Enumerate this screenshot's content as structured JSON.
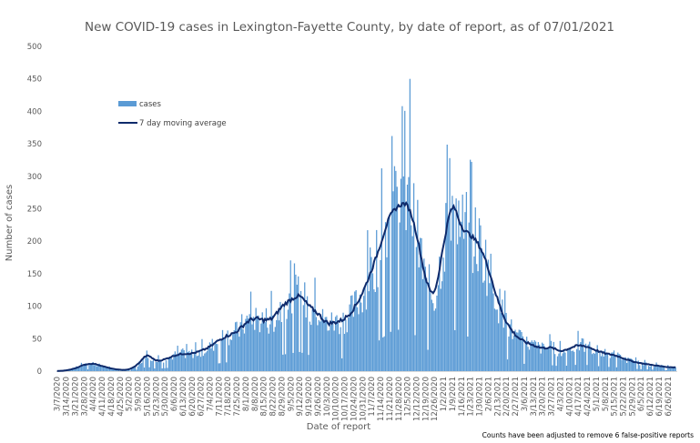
{
  "chart_data": {
    "type": "bar",
    "title": "New COVID-19 cases in Lexington-Fayette County, by date of report, as of 07/01/2021",
    "xlabel": "Date of report",
    "ylabel": "Number of cases",
    "ylim": [
      0,
      500
    ],
    "yticks": [
      0,
      50,
      100,
      150,
      200,
      250,
      300,
      350,
      400,
      450,
      500
    ],
    "grid": false,
    "legend_position": "top-left",
    "start_date": "3/7/2020",
    "end_date": "6/30/2021",
    "xtick_labels": [
      "3/7/2020",
      "3/14/2020",
      "3/21/2020",
      "3/28/2020",
      "4/4/2020",
      "4/11/2020",
      "4/18/2020",
      "4/25/2020",
      "5/2/2020",
      "5/9/2020",
      "5/16/2020",
      "5/23/2020",
      "5/30/2020",
      "6/6/2020",
      "6/13/2020",
      "6/20/2020",
      "6/27/2020",
      "7/4/2020",
      "7/11/2020",
      "7/18/2020",
      "7/25/2020",
      "8/1/2020",
      "8/8/2020",
      "8/15/2020",
      "8/22/2020",
      "8/29/2020",
      "9/5/2020",
      "9/12/2020",
      "9/19/2020",
      "9/26/2020",
      "10/3/2020",
      "10/10/2020",
      "10/17/2020",
      "10/24/2020",
      "10/31/2020",
      "11/7/2020",
      "11/14/2020",
      "11/21/2020",
      "11/28/2020",
      "12/5/2020",
      "12/12/2020",
      "12/19/2020",
      "12/26/2020",
      "1/2/2021",
      "1/9/2021",
      "1/16/2021",
      "1/23/2021",
      "1/30/2021",
      "2/6/2021",
      "2/13/2021",
      "2/20/2021",
      "2/27/2021",
      "3/6/2021",
      "3/13/2021",
      "3/20/2021",
      "3/27/2021",
      "4/3/2021",
      "4/10/2021",
      "4/17/2021",
      "4/24/2021",
      "5/1/2021",
      "5/8/2021",
      "5/15/2021",
      "5/22/2021",
      "5/29/2021",
      "6/5/2021",
      "6/12/2021",
      "6/19/2021",
      "6/26/2021"
    ],
    "weekly_moving_average": [
      0,
      1,
      4,
      10,
      12,
      8,
      4,
      2,
      2,
      10,
      27,
      15,
      18,
      24,
      27,
      27,
      31,
      37,
      48,
      55,
      60,
      75,
      82,
      78,
      80,
      100,
      110,
      118,
      100,
      90,
      73,
      75,
      80,
      95,
      120,
      155,
      195,
      240,
      255,
      260,
      215,
      140,
      110,
      195,
      265,
      220,
      210,
      195,
      160,
      110,
      75,
      55,
      45,
      40,
      35,
      37,
      30,
      35,
      40,
      38,
      32,
      27,
      25,
      20,
      15,
      12,
      10,
      8,
      6
    ],
    "series": [
      {
        "name": "cases",
        "kind": "bar",
        "color": "#5b9bd5",
        "notable_peaks": [
          {
            "date": "12/7/2020",
            "value": 450
          },
          {
            "date": "12/1/2020",
            "value": 408
          },
          {
            "date": "11/23/2020",
            "value": 362
          },
          {
            "date": "1/7/2021",
            "value": 328
          },
          {
            "date": "9/8/2020",
            "value": 166
          }
        ]
      },
      {
        "name": "7 day moving average",
        "kind": "line",
        "color": "#0e2a6b"
      }
    ],
    "legend": [
      "cases",
      "7 day moving average"
    ],
    "footnote": "Counts have been adjusted to remove 6 false-positive reports"
  }
}
